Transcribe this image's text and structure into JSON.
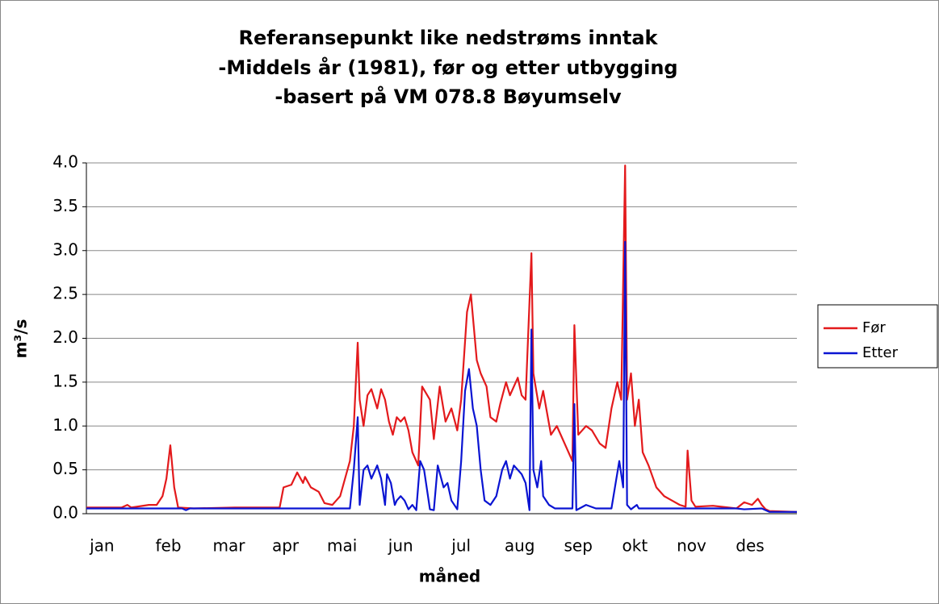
{
  "chart_data": {
    "type": "line",
    "title": [
      "Referansepunkt like nedstrøms inntak",
      "-Middels år (1981), før og etter utbygging",
      "-basert på VM 078.8 Bøyumselv"
    ],
    "xlabel": "måned",
    "ylabel": "m³/s",
    "xlim": [
      1,
      365
    ],
    "xticks": [
      {
        "value": 9,
        "label": "jan"
      },
      {
        "value": 43,
        "label": "feb"
      },
      {
        "value": 74,
        "label": "mar"
      },
      {
        "value": 103,
        "label": "apr"
      },
      {
        "value": 132,
        "label": "mai"
      },
      {
        "value": 162,
        "label": "jun"
      },
      {
        "value": 193,
        "label": "jul"
      },
      {
        "value": 223,
        "label": "aug"
      },
      {
        "value": 253,
        "label": "sep"
      },
      {
        "value": 282,
        "label": "okt"
      },
      {
        "value": 311,
        "label": "nov"
      },
      {
        "value": 341,
        "label": "des"
      }
    ],
    "ylim": [
      0,
      4
    ],
    "yticks": [
      {
        "value": 0,
        "label": "0.0"
      },
      0.5,
      {
        "value": 1,
        "label": "1.0"
      },
      1.5,
      {
        "value": 2,
        "label": "2.0"
      },
      2.5,
      {
        "value": 3,
        "label": "3.0"
      },
      3.5,
      {
        "value": 4,
        "label": "4.0"
      }
    ],
    "grid": true,
    "legend": "right",
    "series": [
      {
        "name": "Før",
        "color": "#e31a1c",
        "x": [
          1,
          19,
          22,
          24,
          33,
          37,
          40,
          42,
          44,
          46,
          48,
          56,
          77,
          100,
          102,
          106,
          109,
          112,
          113,
          116,
          120,
          123,
          127,
          129,
          131,
          136,
          138,
          140,
          141,
          143,
          145,
          147,
          150,
          152,
          154,
          156,
          158,
          160,
          162,
          164,
          166,
          168,
          171,
          173,
          177,
          179,
          182,
          185,
          188,
          191,
          193,
          196,
          198,
          200,
          201,
          203,
          206,
          208,
          211,
          213,
          216,
          218,
          222,
          224,
          226,
          229,
          230,
          233,
          235,
          239,
          242,
          244,
          247,
          250,
          251,
          253,
          255,
          257,
          260,
          264,
          267,
          270,
          273,
          275,
          277,
          278,
          280,
          282,
          284,
          286,
          289,
          293,
          297,
          301,
          305,
          308,
          309,
          311,
          313,
          322,
          330,
          334,
          338,
          342,
          345,
          347,
          349,
          351,
          365
        ],
        "values": [
          0.07,
          0.07,
          0.1,
          0.07,
          0.1,
          0.1,
          0.2,
          0.4,
          0.78,
          0.3,
          0.07,
          0.06,
          0.07,
          0.07,
          0.3,
          0.33,
          0.47,
          0.35,
          0.42,
          0.3,
          0.25,
          0.12,
          0.1,
          0.15,
          0.2,
          0.6,
          1.0,
          1.95,
          1.3,
          1.0,
          1.35,
          1.42,
          1.2,
          1.42,
          1.3,
          1.05,
          0.9,
          1.1,
          1.05,
          1.1,
          0.95,
          0.7,
          0.55,
          1.45,
          1.3,
          0.85,
          1.45,
          1.05,
          1.2,
          0.95,
          1.3,
          2.3,
          2.5,
          2.0,
          1.75,
          1.6,
          1.45,
          1.1,
          1.05,
          1.25,
          1.5,
          1.35,
          1.55,
          1.35,
          1.3,
          2.97,
          1.6,
          1.2,
          1.4,
          0.9,
          1.0,
          0.9,
          0.75,
          0.6,
          2.15,
          0.9,
          0.95,
          1.0,
          0.95,
          0.8,
          0.75,
          1.2,
          1.5,
          1.3,
          3.97,
          1.3,
          1.6,
          1.0,
          1.3,
          0.7,
          0.55,
          0.3,
          0.2,
          0.15,
          0.1,
          0.08,
          0.72,
          0.15,
          0.08,
          0.09,
          0.07,
          0.06,
          0.13,
          0.1,
          0.17,
          0.1,
          0.05,
          0.03,
          0.02
        ]
      },
      {
        "name": "Etter",
        "color": "#0a14d2",
        "x": [
          1,
          50,
          52,
          54,
          136,
          138,
          140,
          141,
          143,
          145,
          147,
          150,
          152,
          154,
          155,
          157,
          159,
          160,
          162,
          164,
          166,
          168,
          170,
          172,
          174,
          177,
          179,
          181,
          184,
          186,
          188,
          191,
          193,
          195,
          197,
          199,
          201,
          203,
          205,
          208,
          211,
          214,
          216,
          218,
          220,
          222,
          224,
          226,
          228,
          229,
          230,
          232,
          234,
          235,
          238,
          241,
          250,
          251,
          252,
          257,
          262,
          270,
          274,
          276,
          277,
          278,
          280,
          283,
          284,
          334,
          338,
          347,
          351,
          365
        ],
        "values": [
          0.06,
          0.06,
          0.04,
          0.06,
          0.06,
          0.5,
          1.1,
          0.1,
          0.5,
          0.55,
          0.4,
          0.55,
          0.4,
          0.1,
          0.45,
          0.35,
          0.1,
          0.15,
          0.2,
          0.15,
          0.05,
          0.1,
          0.04,
          0.6,
          0.5,
          0.05,
          0.04,
          0.55,
          0.3,
          0.35,
          0.15,
          0.05,
          0.6,
          1.4,
          1.65,
          1.2,
          1.0,
          0.5,
          0.15,
          0.1,
          0.2,
          0.5,
          0.6,
          0.4,
          0.55,
          0.5,
          0.45,
          0.35,
          0.04,
          2.1,
          0.5,
          0.3,
          0.6,
          0.2,
          0.1,
          0.06,
          0.06,
          1.25,
          0.04,
          0.1,
          0.06,
          0.06,
          0.6,
          0.3,
          3.1,
          0.1,
          0.05,
          0.1,
          0.06,
          0.06,
          0.05,
          0.06,
          0.02,
          0.02
        ]
      }
    ]
  }
}
